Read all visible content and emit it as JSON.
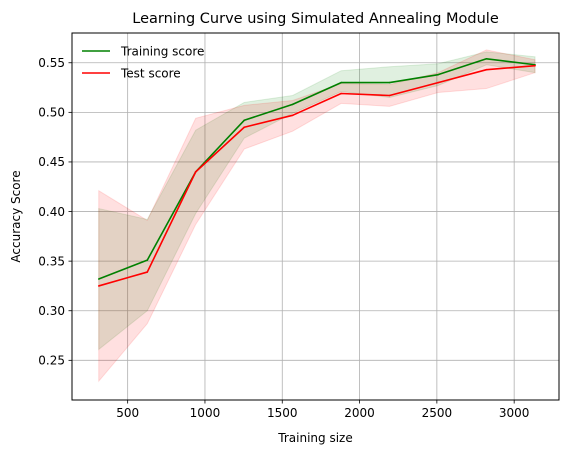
{
  "chart_data": {
    "type": "line",
    "title": "Learning Curve using Simulated Annealing Module",
    "xlabel": "Training size",
    "ylabel": "Accuracy Score",
    "xlim": [
      140,
      3290
    ],
    "ylim": [
      0.21,
      0.58
    ],
    "xticks": [
      500,
      1000,
      1500,
      2000,
      2500,
      3000
    ],
    "yticks": [
      0.25,
      0.3,
      0.35,
      0.4,
      0.45,
      0.5,
      0.55
    ],
    "grid": true,
    "legend_position": "top-left",
    "x": [
      313,
      627,
      940,
      1254,
      1567,
      1881,
      2194,
      2508,
      2821,
      3135
    ],
    "series": [
      {
        "name": "Training score",
        "color": "#008000",
        "values": [
          0.332,
          0.351,
          0.44,
          0.492,
          0.508,
          0.53,
          0.53,
          0.538,
          0.554,
          0.548
        ],
        "band_lower": [
          0.261,
          0.3,
          0.398,
          0.474,
          0.499,
          0.521,
          0.515,
          0.527,
          0.548,
          0.54
        ],
        "band_upper": [
          0.403,
          0.392,
          0.482,
          0.51,
          0.517,
          0.542,
          0.546,
          0.549,
          0.561,
          0.556
        ]
      },
      {
        "name": "Test score",
        "color": "#ff0000",
        "values": [
          0.325,
          0.339,
          0.44,
          0.485,
          0.497,
          0.519,
          0.517,
          0.53,
          0.543,
          0.547
        ],
        "band_lower": [
          0.229,
          0.287,
          0.387,
          0.463,
          0.481,
          0.509,
          0.506,
          0.52,
          0.524,
          0.54
        ],
        "band_upper": [
          0.421,
          0.391,
          0.494,
          0.507,
          0.512,
          0.529,
          0.528,
          0.54,
          0.563,
          0.553
        ]
      }
    ]
  }
}
